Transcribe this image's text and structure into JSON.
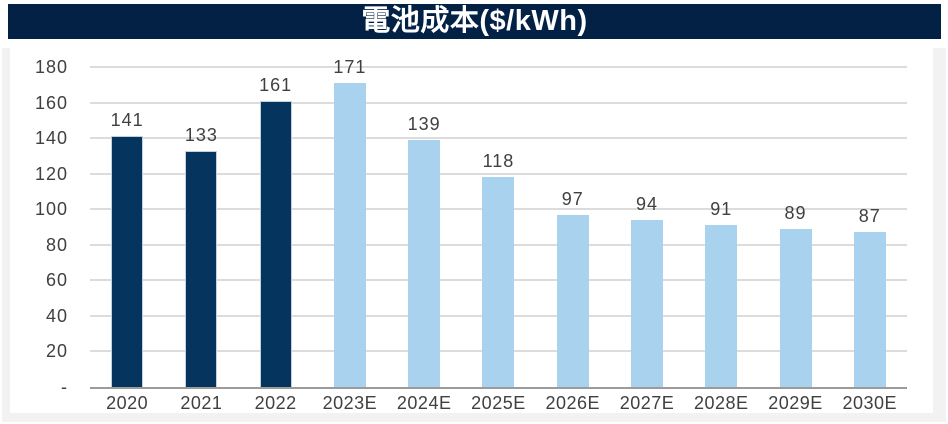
{
  "title": "電池成本($/kWh)",
  "colors": {
    "title_bg": "#032145",
    "title_text": "#ffffff",
    "bar_actual": "#05355f",
    "bar_estimate": "#a9d2ef",
    "gridline": "#dcdcdc",
    "axis_line": "#9b9b9b",
    "label_text": "#404040",
    "frame": "#f2f2f2",
    "background": "#ffffff"
  },
  "chart_data": {
    "type": "bar",
    "title": "電池成本($/kWh)",
    "categories": [
      "2020",
      "2021",
      "2022",
      "2023E",
      "2024E",
      "2025E",
      "2026E",
      "2027E",
      "2028E",
      "2029E",
      "2030E"
    ],
    "values": [
      141,
      133,
      161,
      171,
      139,
      118,
      97,
      94,
      91,
      89,
      87
    ],
    "bar_styles": [
      "actual",
      "actual",
      "actual",
      "estimate",
      "estimate",
      "estimate",
      "estimate",
      "estimate",
      "estimate",
      "estimate",
      "estimate"
    ],
    "xlabel": "",
    "ylabel": "",
    "ylim": [
      0,
      180
    ],
    "ytick_interval": 20,
    "ytick_labels": [
      "-",
      "20",
      "40",
      "60",
      "80",
      "100",
      "120",
      "140",
      "160",
      "180"
    ],
    "grid": true,
    "data_labels": true,
    "legend": "none"
  }
}
